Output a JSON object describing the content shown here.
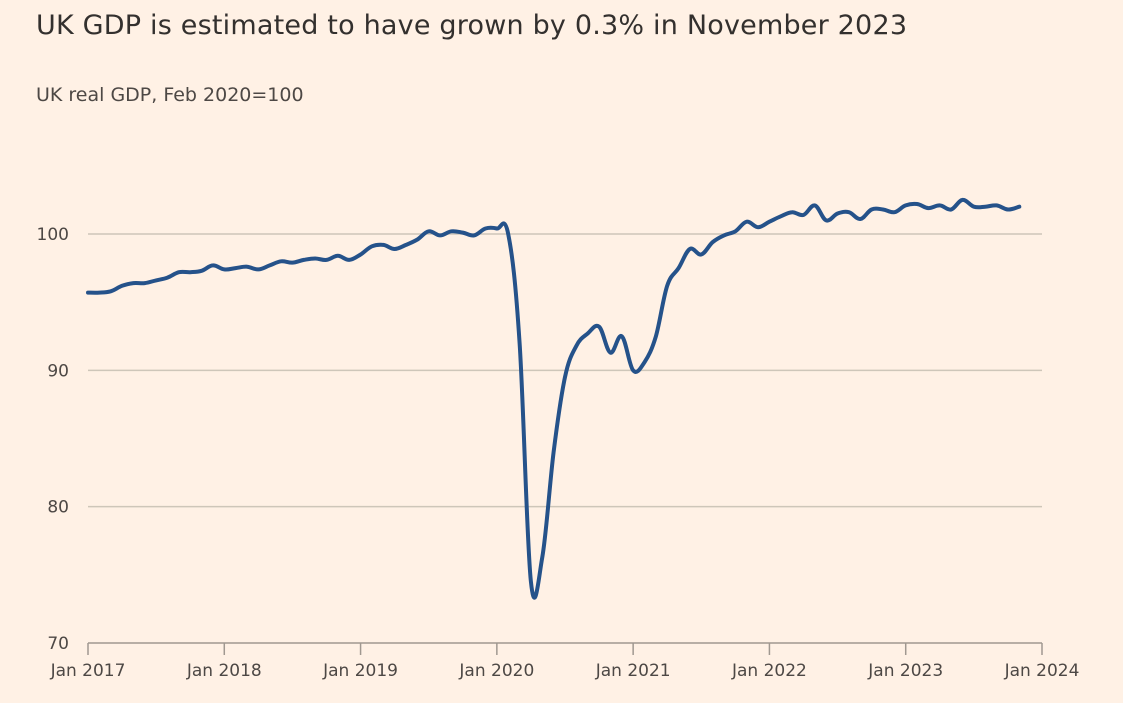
{
  "chart_data": {
    "type": "line",
    "title": "UK GDP is estimated to have grown by 0.3% in November 2023",
    "subtitle": "UK real GDP, Feb 2020=100",
    "xlabel": "",
    "ylabel": "",
    "x_start": "Jan 2017",
    "x_frequency": "monthly",
    "xlim_months": [
      0,
      84
    ],
    "ylim": [
      70,
      105
    ],
    "grid": true,
    "colors": {
      "line": "#25528a",
      "grid": "#cec6b9",
      "axis": "#a09890",
      "background": "#fff1e5"
    },
    "yticks": [
      {
        "value": 70,
        "label": "70"
      },
      {
        "value": 80,
        "label": "80"
      },
      {
        "value": 90,
        "label": "90"
      },
      {
        "value": 100,
        "label": "100"
      }
    ],
    "xticks": [
      {
        "month": 0,
        "label": "Jan 2017"
      },
      {
        "month": 12,
        "label": "Jan 2018"
      },
      {
        "month": 24,
        "label": "Jan 2019"
      },
      {
        "month": 36,
        "label": "Jan 2020"
      },
      {
        "month": 48,
        "label": "Jan 2021"
      },
      {
        "month": 60,
        "label": "Jan 2022"
      },
      {
        "month": 72,
        "label": "Jan 2023"
      },
      {
        "month": 84,
        "label": "Jan 2024"
      }
    ],
    "series": [
      {
        "name": "UK real GDP",
        "values": [
          95.7,
          95.7,
          95.8,
          96.2,
          96.4,
          96.4,
          96.6,
          96.8,
          97.2,
          97.2,
          97.3,
          97.7,
          97.4,
          97.5,
          97.6,
          97.4,
          97.7,
          98.0,
          97.9,
          98.1,
          98.2,
          98.1,
          98.4,
          98.1,
          98.5,
          99.1,
          99.2,
          98.9,
          99.2,
          99.6,
          100.2,
          99.9,
          100.2,
          100.1,
          99.9,
          100.4,
          100.4,
          100.0,
          92.0,
          74.5,
          76.3,
          84.0,
          89.5,
          91.8,
          92.7,
          93.2,
          91.3,
          92.5,
          90.0,
          90.6,
          92.5,
          96.2,
          97.5,
          98.9,
          98.5,
          99.4,
          99.9,
          100.2,
          100.9,
          100.5,
          100.9,
          101.3,
          101.6,
          101.4,
          102.1,
          101.0,
          101.5,
          101.6,
          101.1,
          101.8,
          101.8,
          101.6,
          102.1,
          102.2,
          101.9,
          102.1,
          101.8,
          102.5,
          102.0,
          102.0,
          102.1,
          101.8,
          102.0
        ]
      }
    ]
  }
}
